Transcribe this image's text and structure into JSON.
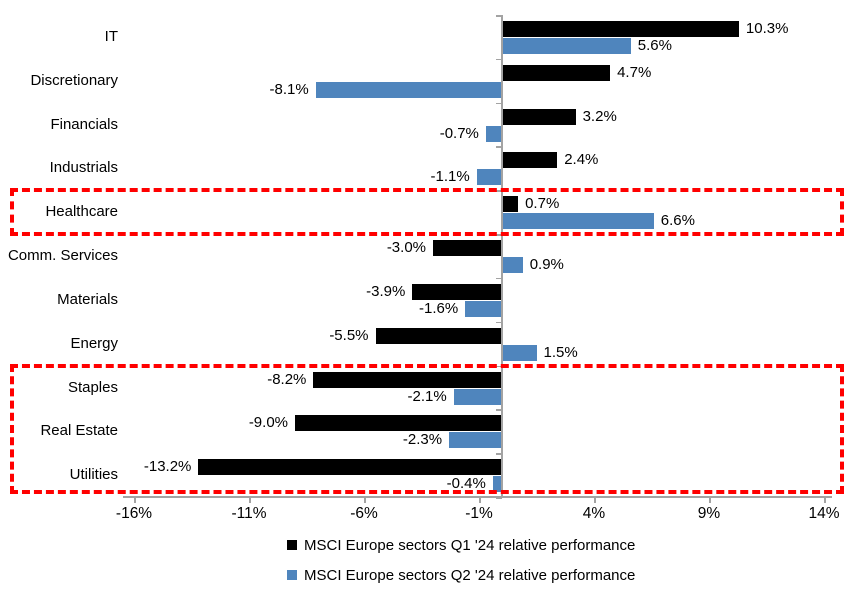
{
  "chart_data": {
    "type": "bar",
    "orientation": "horizontal",
    "title": "",
    "categories": [
      "IT",
      "Discretionary",
      "Financials",
      "Industrials",
      "Healthcare",
      "Comm. Services",
      "Materials",
      "Energy",
      "Staples",
      "Real Estate",
      "Utilities"
    ],
    "series": [
      {
        "name": "MSCI Europe sectors Q1 '24 relative performance",
        "color": "#000000",
        "values": [
          10.3,
          4.7,
          3.2,
          2.4,
          0.7,
          -3.0,
          -3.9,
          -5.5,
          -8.2,
          -9.0,
          -13.2
        ]
      },
      {
        "name": "MSCI Europe sectors Q2 '24 relative performance",
        "color": "#4f85bd",
        "values": [
          5.6,
          -8.1,
          -0.7,
          -1.1,
          6.6,
          0.9,
          -1.6,
          1.5,
          -2.1,
          -2.3,
          -0.4
        ]
      }
    ],
    "data_labels": true,
    "data_label_format": "one_decimal_percent",
    "x_axis": {
      "tick_labels": [
        "-16%",
        "-11%",
        "-6%",
        "-1%",
        "4%",
        "9%",
        "14%"
      ],
      "tick_values": [
        -16,
        -11,
        -6,
        -1,
        4,
        9,
        14
      ],
      "min": -16.5,
      "max": 14.5
    },
    "grid": false,
    "legend_position": "bottom",
    "highlight_boxes": [
      {
        "style": "red-dashed",
        "color": "#ff0000",
        "categories": [
          "Healthcare"
        ]
      },
      {
        "style": "red-dashed",
        "color": "#ff0000",
        "categories": [
          "Staples",
          "Real Estate",
          "Utilities"
        ]
      }
    ]
  }
}
